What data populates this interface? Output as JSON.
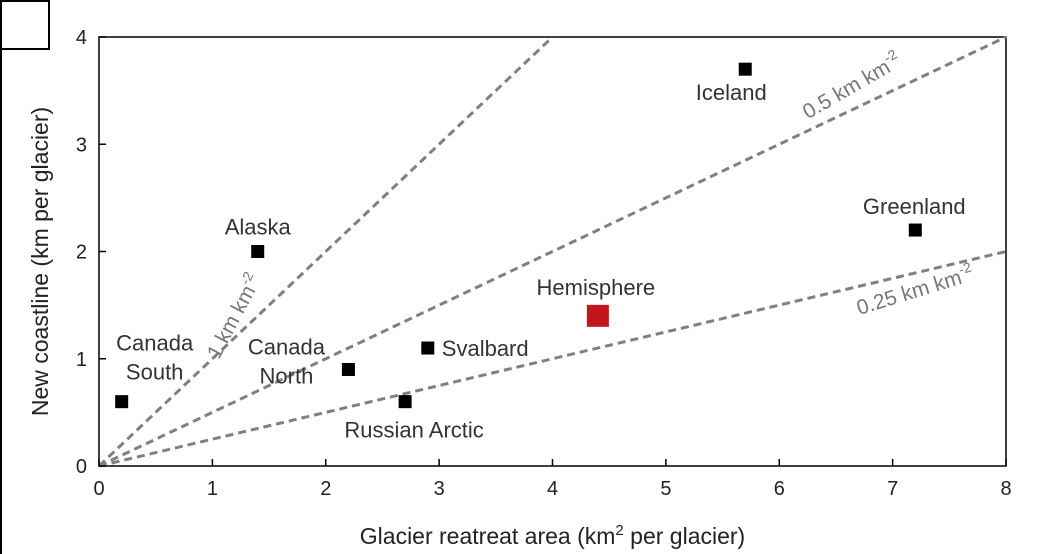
{
  "chart_data": {
    "type": "scatter",
    "title": "",
    "xlabel": {
      "pre": "Glacier reatreat area (km",
      "sup": "2",
      "post": " per glacier)"
    },
    "ylabel": "New coastline (km per glacier)",
    "xlim": [
      0,
      8
    ],
    "ylim": [
      0,
      4
    ],
    "xticks": [
      "0",
      "1",
      "2",
      "3",
      "4",
      "5",
      "6",
      "7",
      "8"
    ],
    "yticks": [
      "0",
      "1",
      "2",
      "3",
      "4"
    ],
    "grid": false,
    "points": [
      {
        "name": "Canada South",
        "label_lines": [
          "Canada",
          "South"
        ],
        "x": 0.2,
        "y": 0.6,
        "color": "#000000"
      },
      {
        "name": "Alaska",
        "label_lines": [
          "Alaska"
        ],
        "x": 1.4,
        "y": 2.0,
        "color": "#000000"
      },
      {
        "name": "Canada North",
        "label_lines": [
          "Canada",
          "North"
        ],
        "x": 2.2,
        "y": 0.9,
        "color": "#000000"
      },
      {
        "name": "Svalbard",
        "label_lines": [
          "Svalbard"
        ],
        "x": 2.9,
        "y": 1.1,
        "color": "#000000"
      },
      {
        "name": "Russian Arctic",
        "label_lines": [
          "Russian Arctic"
        ],
        "x": 2.7,
        "y": 0.6,
        "color": "#000000"
      },
      {
        "name": "Hemisphere",
        "label_lines": [
          "Hemisphere"
        ],
        "x": 4.4,
        "y": 1.4,
        "color": "#c0161c",
        "label_color": "#8b1a1a"
      },
      {
        "name": "Iceland",
        "label_lines": [
          "Iceland"
        ],
        "x": 5.7,
        "y": 3.7,
        "color": "#000000"
      },
      {
        "name": "Greenland",
        "label_lines": [
          "Greenland"
        ],
        "x": 7.2,
        "y": 2.2,
        "color": "#000000"
      }
    ],
    "reference_lines": [
      {
        "slope": 1,
        "label": "1 km km",
        "sup": "-2"
      },
      {
        "slope": 0.5,
        "label": "0.5 km km",
        "sup": "-2"
      },
      {
        "slope": 0.25,
        "label": "0.25 km km",
        "sup": "-2"
      }
    ],
    "colors": {
      "marker": "#000000",
      "highlight": "#c0161c",
      "reference_line": "#808080"
    }
  }
}
